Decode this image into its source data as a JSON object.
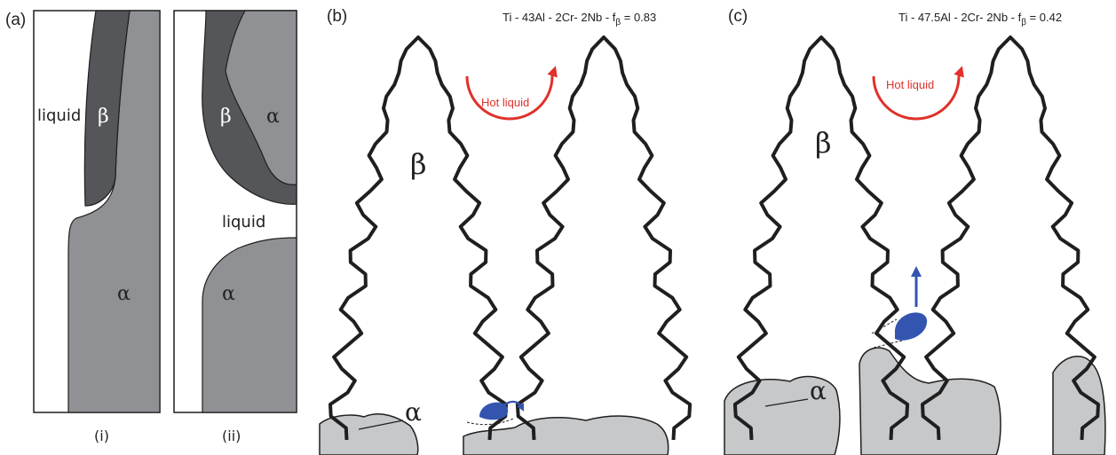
{
  "panel_a": {
    "label": "(a)",
    "sub_i": {
      "caption": "(i)",
      "liquid": "liquid",
      "beta": "β",
      "alpha": "α"
    },
    "sub_ii": {
      "caption": "(ii)",
      "beta": "β",
      "alpha_top": "α",
      "liquid": "liquid",
      "alpha_bottom": "α"
    }
  },
  "panel_b": {
    "label": "(b)",
    "header_main": "Ti - 43Al - 2Cr- 2Nb - f",
    "header_sub": "β",
    "header_value": " = 0.83",
    "hot_liquid": "Hot liquid",
    "beta": "β",
    "alpha": "α"
  },
  "panel_c": {
    "label": "(c)",
    "header_main": "Ti - 47.5Al - 2Cr- 2Nb - f",
    "header_sub": "β",
    "header_value": " = 0.42",
    "hot_liquid": "Hot liquid",
    "beta": "β",
    "alpha": "α"
  },
  "colors": {
    "dark_gray": "#55565a",
    "light_gray": "#8f9195",
    "pale_gray": "#c6c8ca",
    "outline": "#1f1f1f",
    "hot_arrow": "#e0312a",
    "blob": "#3355b0"
  }
}
